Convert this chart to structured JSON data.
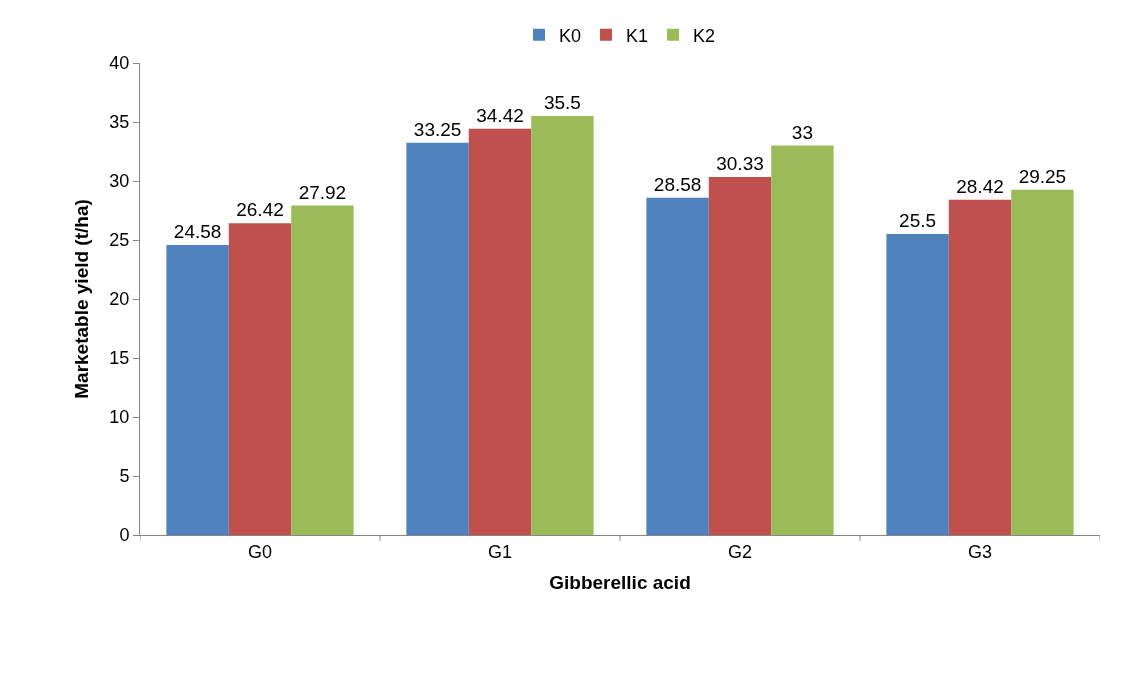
{
  "chart_data": {
    "type": "bar",
    "xlabel": "Gibberellic acid",
    "ylabel": "Marketable yield (t/ha)",
    "categories": [
      "G0",
      "G1",
      "G2",
      "G3"
    ],
    "series": [
      {
        "name": "K0",
        "color": "#4f81bd",
        "values": [
          24.58,
          33.25,
          28.58,
          25.5
        ]
      },
      {
        "name": "K1",
        "color": "#c0504d",
        "values": [
          26.42,
          34.42,
          30.33,
          28.42
        ]
      },
      {
        "name": "K2",
        "color": "#9bbb59",
        "values": [
          27.92,
          35.5,
          33,
          29.25
        ]
      }
    ],
    "ylim": [
      0,
      40
    ],
    "yticks": [
      0,
      5,
      10,
      15,
      20,
      25,
      30,
      35,
      40
    ],
    "grid": false,
    "legend": "top",
    "data_labels": true
  }
}
